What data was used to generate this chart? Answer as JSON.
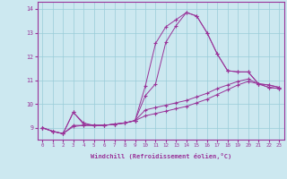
{
  "xlabel": "Windchill (Refroidissement éolien,°C)",
  "ylabel": "",
  "xlim": [
    -0.5,
    23.5
  ],
  "ylim": [
    8.5,
    14.3
  ],
  "yticks": [
    9,
    10,
    11,
    12,
    13,
    14
  ],
  "xticks": [
    0,
    1,
    2,
    3,
    4,
    5,
    6,
    7,
    8,
    9,
    10,
    11,
    12,
    13,
    14,
    15,
    16,
    17,
    18,
    19,
    20,
    21,
    22,
    23
  ],
  "bg_color": "#cce8f0",
  "line_color": "#993399",
  "grid_color": "#99ccd9",
  "lines": [
    [
      9.0,
      8.85,
      8.75,
      9.65,
      9.2,
      9.1,
      9.1,
      9.15,
      9.2,
      9.3,
      10.75,
      12.55,
      13.25,
      13.55,
      13.85,
      13.7,
      13.0,
      12.1,
      11.4,
      11.35,
      11.35,
      10.85,
      10.8,
      10.7
    ],
    [
      9.0,
      8.85,
      8.75,
      9.1,
      9.1,
      9.1,
      9.1,
      9.15,
      9.2,
      9.3,
      10.35,
      10.85,
      12.6,
      13.3,
      13.85,
      13.7,
      13.0,
      12.1,
      11.4,
      11.35,
      11.35,
      10.85,
      10.8,
      10.7
    ],
    [
      9.0,
      8.85,
      8.75,
      9.65,
      9.15,
      9.1,
      9.1,
      9.15,
      9.2,
      9.3,
      9.75,
      9.85,
      9.95,
      10.05,
      10.15,
      10.3,
      10.45,
      10.65,
      10.8,
      10.95,
      11.05,
      10.85,
      10.7,
      10.65
    ],
    [
      9.0,
      8.85,
      8.75,
      9.05,
      9.1,
      9.1,
      9.1,
      9.15,
      9.2,
      9.3,
      9.5,
      9.6,
      9.7,
      9.8,
      9.9,
      10.05,
      10.2,
      10.4,
      10.6,
      10.8,
      10.95,
      10.85,
      10.7,
      10.65
    ]
  ]
}
